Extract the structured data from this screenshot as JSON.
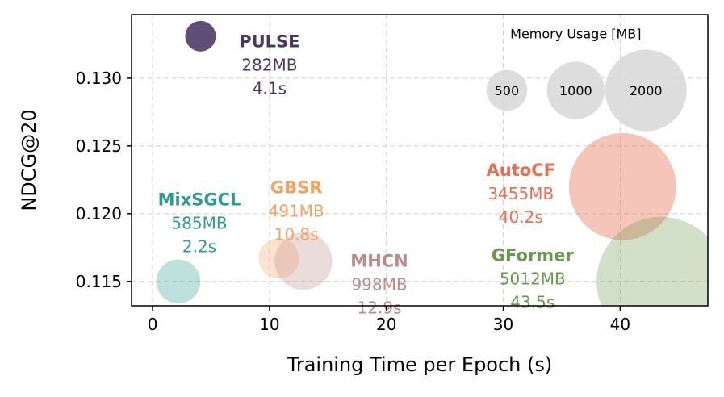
{
  "chart_data": {
    "type": "scatter",
    "xlabel": "Training Time per Epoch (s)",
    "ylabel": "NDCG@20",
    "xlim": [
      -1.8,
      47.5
    ],
    "ylim": [
      0.1132,
      0.1347
    ],
    "xticks": [
      0,
      10,
      20,
      30,
      40
    ],
    "yticks": [
      0.115,
      0.12,
      0.125,
      0.13
    ],
    "xtick_labels": [
      "0",
      "10",
      "20",
      "30",
      "40"
    ],
    "ytick_labels": [
      "0.115",
      "0.120",
      "0.125",
      "0.130"
    ],
    "grid": true,
    "legend": {
      "title": "Memory Usage [MB]",
      "position": "top-right",
      "entries": [
        {
          "label": "500",
          "memory_mb": 500,
          "x": 30.3,
          "y": 0.1291
        },
        {
          "label": "1000",
          "memory_mb": 1000,
          "x": 36.2,
          "y": 0.1291
        },
        {
          "label": "2000",
          "memory_mb": 2000,
          "x": 42.2,
          "y": 0.1291
        }
      ],
      "color": "#d9d9d9"
    },
    "series": [
      {
        "name": "PULSE",
        "memory": "282MB",
        "time": "4.1s",
        "memory_mb": 282,
        "x": 4.1,
        "y": 0.1331,
        "color": "#4b3563",
        "alpha": 0.88,
        "label_x": 10.0,
        "label_y": 0.1323
      },
      {
        "name": "MixSGCL",
        "memory": "585MB",
        "time": "2.2s",
        "memory_mb": 585,
        "x": 2.2,
        "y": 0.115,
        "color": "#2a9d8f",
        "alpha": 0.3,
        "label_x": 4.0,
        "label_y": 0.1206
      },
      {
        "name": "GBSR",
        "memory": "491MB",
        "time": "10.8s",
        "memory_mb": 491,
        "x": 10.8,
        "y": 0.1167,
        "color": "#f4a261",
        "alpha": 0.3,
        "label_x": 12.3,
        "label_y": 0.1215
      },
      {
        "name": "MHCN",
        "memory": "998MB",
        "time": "12.9s",
        "memory_mb": 998,
        "x": 12.9,
        "y": 0.1165,
        "color": "#bc8a8a",
        "alpha": 0.3,
        "label_x": 19.4,
        "label_y": 0.1161
      },
      {
        "name": "AutoCF",
        "memory": "3455MB",
        "time": "40.2s",
        "memory_mb": 3455,
        "x": 40.2,
        "y": 0.122,
        "color": "#e76f51",
        "alpha": 0.4,
        "label_x": 31.5,
        "label_y": 0.1228
      },
      {
        "name": "GFormer",
        "memory": "5012MB",
        "time": "43.5s",
        "memory_mb": 5012,
        "x": 43.5,
        "y": 0.115,
        "color": "#6a994e",
        "alpha": 0.3,
        "label_x": 32.5,
        "label_y": 0.1165
      }
    ]
  }
}
